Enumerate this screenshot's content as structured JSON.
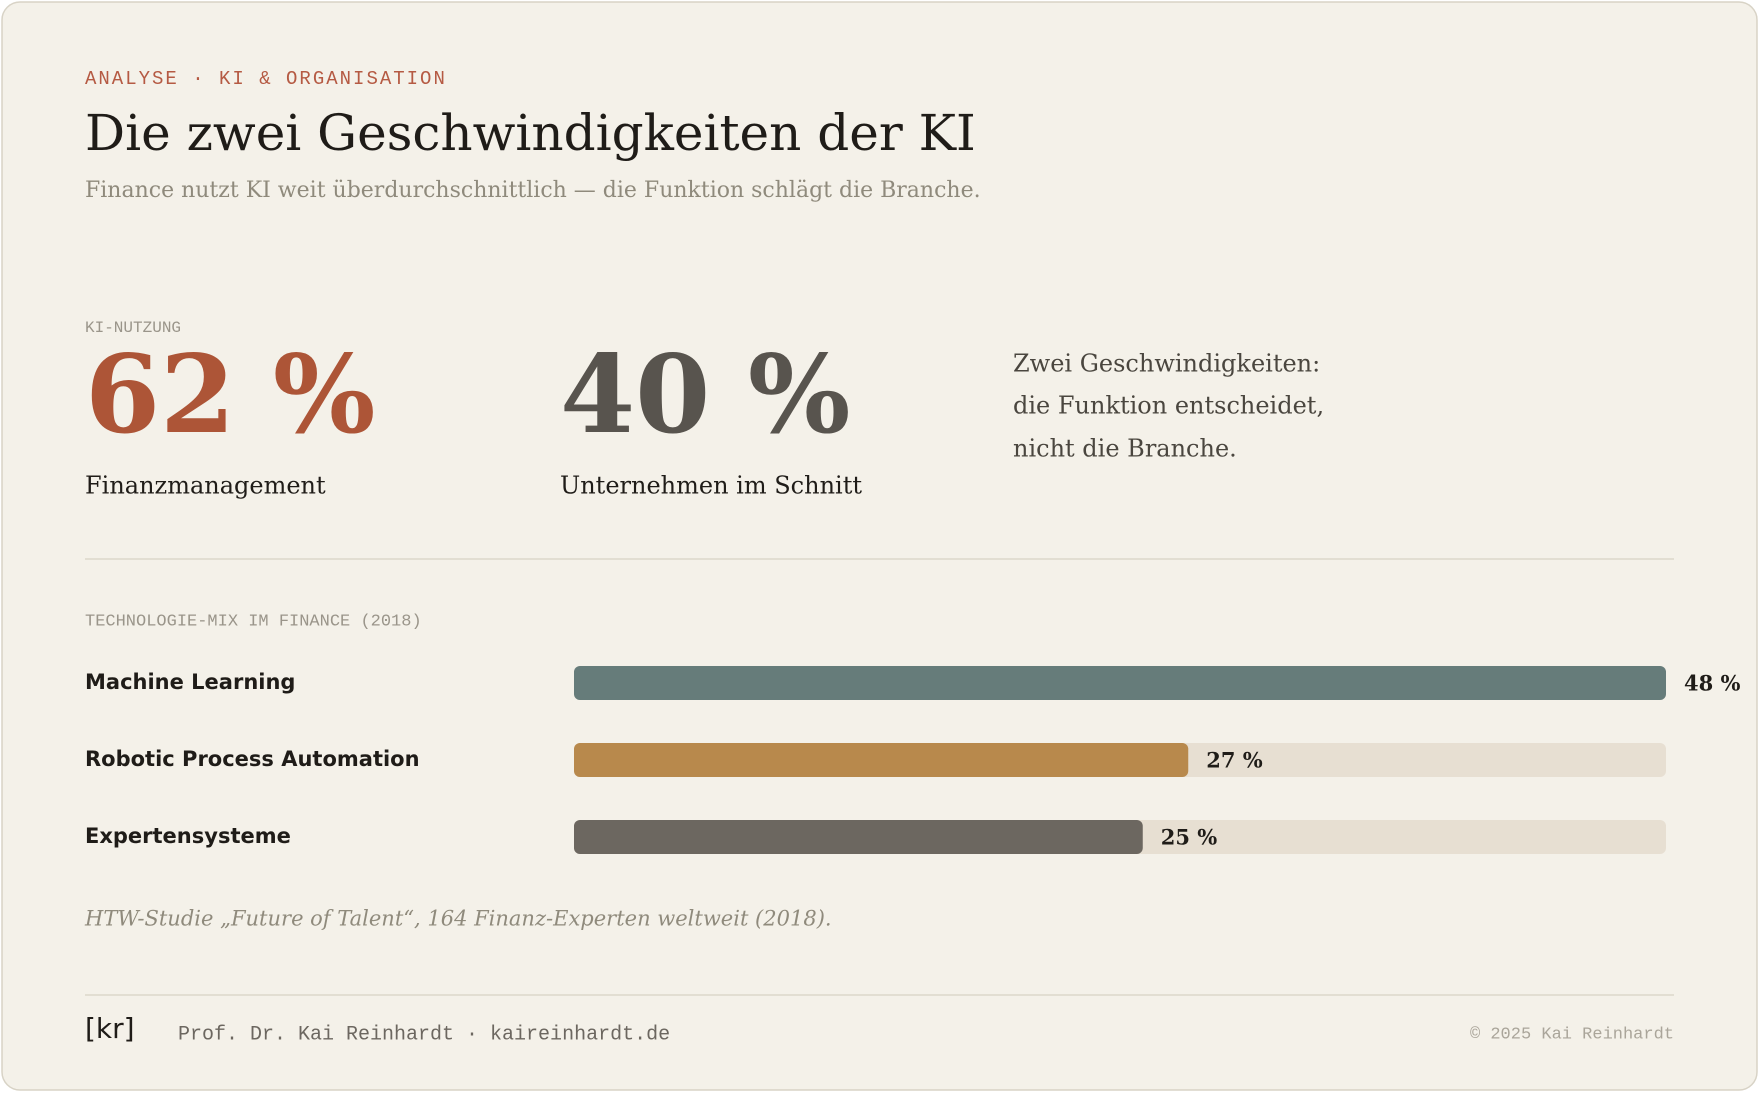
{
  "eyebrow": "ANALYSE · KI & ORGANISATION",
  "title": "Die zwei Geschwindigkeiten der KI",
  "subtitle": "Finance nutzt KI weit überdurchschnittlich — die Funktion schlägt die Branche.",
  "stats_label": "KI-NUTZUNG",
  "stats": [
    {
      "value": "62 %",
      "label": "Finanzmanagement"
    },
    {
      "value": "40 %",
      "label": "Unternehmen im Schnitt"
    }
  ],
  "note": [
    "Zwei Geschwindigkeiten:",
    "die Funktion entscheidet,",
    "nicht die Branche."
  ],
  "chart_data": {
    "type": "bar",
    "title": "TECHNOLOGIE-MIX IM FINANCE (2018)",
    "categories": [
      "Machine Learning",
      "Robotic Process Automation",
      "Expertensysteme"
    ],
    "values": [
      48,
      27,
      25
    ],
    "value_labels": [
      "48 %",
      "27 %",
      "25 %"
    ],
    "colors": [
      "#667c7a",
      "#b8894c",
      "#6c6760"
    ],
    "xlim": [
      0,
      48
    ]
  },
  "source": "HTW-Studie „Future of Talent“, 164 Finanz-Experten weltweit (2018).",
  "footer": {
    "logo": "[kr]",
    "author": "Prof. Dr. Kai Reinhardt · kaireinhardt.de",
    "copyright": "© 2025 Kai Reinhardt"
  }
}
